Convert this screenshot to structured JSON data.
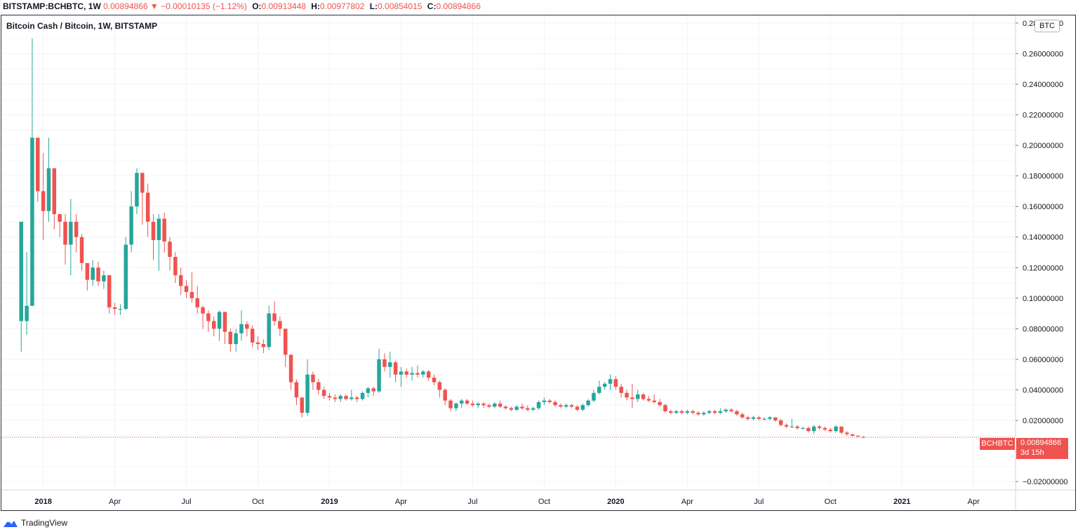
{
  "header": {
    "symbol": "BITSTAMP:BCHBTC, 1W",
    "last": "0.00894866",
    "change_arrow": "▼",
    "change": "−0.00010135 (−1.12%)",
    "open_label": "O:",
    "open": "0.00913448",
    "high_label": "H:",
    "high": "0.00977802",
    "low_label": "L:",
    "low": "0.00854015",
    "close_label": "C:",
    "close": "0.00894866"
  },
  "chart_title": "Bitcoin Cash / Bitcoin, 1W, BITSTAMP",
  "currency_badge": "BTC",
  "symbol_tag": "BCHBTC",
  "last_price_tag": "0.00894866",
  "countdown": "3d 15h",
  "footer": {
    "brand": "TradingView",
    "logo_icon": "tradingview-logo-icon"
  },
  "colors": {
    "up": "#26a69a",
    "down": "#ef5350",
    "grid": "#f0f3fa",
    "text": "#131722"
  },
  "chart_data": {
    "type": "candlestick",
    "title": "Bitcoin Cash / Bitcoin, 1W, BITSTAMP",
    "y_axis_position": "right",
    "ylim": [
      -0.025,
      0.285
    ],
    "yticks": [
      "0.28000000",
      "0.26000000",
      "0.24000000",
      "0.22000000",
      "0.20000000",
      "0.18000000",
      "0.16000000",
      "0.14000000",
      "0.12000000",
      "0.10000000",
      "0.08000000",
      "0.06000000",
      "0.04000000",
      "0.02000000",
      "−0.02000000"
    ],
    "xtick_labels": [
      {
        "label": "2018",
        "bold": true,
        "week": 4
      },
      {
        "label": "Apr",
        "bold": false,
        "week": 17
      },
      {
        "label": "Jul",
        "bold": false,
        "week": 30
      },
      {
        "label": "Oct",
        "bold": false,
        "week": 43
      },
      {
        "label": "2019",
        "bold": true,
        "week": 56
      },
      {
        "label": "Apr",
        "bold": false,
        "week": 69
      },
      {
        "label": "Jul",
        "bold": false,
        "week": 82
      },
      {
        "label": "Oct",
        "bold": false,
        "week": 95
      },
      {
        "label": "2020",
        "bold": true,
        "week": 108
      },
      {
        "label": "Apr",
        "bold": false,
        "week": 121
      },
      {
        "label": "Jul",
        "bold": false,
        "week": 134
      },
      {
        "label": "Oct",
        "bold": false,
        "week": 147
      },
      {
        "label": "2021",
        "bold": true,
        "week": 160
      },
      {
        "label": "Apr",
        "bold": false,
        "week": 173
      }
    ],
    "last_price": 0.00894866,
    "x_range_weeks": [
      -3.6,
      180.5
    ],
    "candles_ohlc": [
      [
        0.085,
        0.15,
        0.065,
        0.15
      ],
      [
        0.085,
        0.13,
        0.076,
        0.095
      ],
      [
        0.095,
        0.27,
        0.095,
        0.205
      ],
      [
        0.205,
        0.205,
        0.163,
        0.17
      ],
      [
        0.17,
        0.195,
        0.138,
        0.157
      ],
      [
        0.157,
        0.205,
        0.15,
        0.185
      ],
      [
        0.185,
        0.185,
        0.145,
        0.155
      ],
      [
        0.155,
        0.155,
        0.14,
        0.15
      ],
      [
        0.15,
        0.155,
        0.122,
        0.135
      ],
      [
        0.135,
        0.165,
        0.115,
        0.15
      ],
      [
        0.15,
        0.155,
        0.13,
        0.14
      ],
      [
        0.14,
        0.142,
        0.118,
        0.123
      ],
      [
        0.123,
        0.123,
        0.105,
        0.112
      ],
      [
        0.112,
        0.125,
        0.108,
        0.12
      ],
      [
        0.12,
        0.124,
        0.108,
        0.111
      ],
      [
        0.111,
        0.118,
        0.106,
        0.115
      ],
      [
        0.115,
        0.115,
        0.09,
        0.094
      ],
      [
        0.094,
        0.097,
        0.089,
        0.093
      ],
      [
        0.093,
        0.096,
        0.089,
        0.093
      ],
      [
        0.093,
        0.14,
        0.092,
        0.135
      ],
      [
        0.135,
        0.17,
        0.13,
        0.16
      ],
      [
        0.16,
        0.185,
        0.155,
        0.182
      ],
      [
        0.182,
        0.182,
        0.148,
        0.169
      ],
      [
        0.169,
        0.175,
        0.14,
        0.15
      ],
      [
        0.15,
        0.155,
        0.125,
        0.138
      ],
      [
        0.138,
        0.155,
        0.118,
        0.152
      ],
      [
        0.152,
        0.156,
        0.13,
        0.137
      ],
      [
        0.137,
        0.14,
        0.118,
        0.127
      ],
      [
        0.127,
        0.13,
        0.11,
        0.115
      ],
      [
        0.115,
        0.12,
        0.102,
        0.108
      ],
      [
        0.108,
        0.112,
        0.1,
        0.104
      ],
      [
        0.104,
        0.117,
        0.097,
        0.1
      ],
      [
        0.1,
        0.108,
        0.09,
        0.094
      ],
      [
        0.094,
        0.095,
        0.08,
        0.09
      ],
      [
        0.09,
        0.092,
        0.078,
        0.085
      ],
      [
        0.085,
        0.088,
        0.075,
        0.08
      ],
      [
        0.08,
        0.092,
        0.072,
        0.091
      ],
      [
        0.091,
        0.091,
        0.07,
        0.078
      ],
      [
        0.078,
        0.08,
        0.065,
        0.07
      ],
      [
        0.07,
        0.08,
        0.065,
        0.077
      ],
      [
        0.077,
        0.092,
        0.072,
        0.083
      ],
      [
        0.083,
        0.085,
        0.075,
        0.08
      ],
      [
        0.08,
        0.082,
        0.068,
        0.071
      ],
      [
        0.071,
        0.075,
        0.066,
        0.07
      ],
      [
        0.07,
        0.073,
        0.064,
        0.068
      ],
      [
        0.068,
        0.095,
        0.066,
        0.09
      ],
      [
        0.09,
        0.098,
        0.082,
        0.085
      ],
      [
        0.085,
        0.088,
        0.075,
        0.08
      ],
      [
        0.08,
        0.08,
        0.055,
        0.063
      ],
      [
        0.063,
        0.063,
        0.04,
        0.045
      ],
      [
        0.045,
        0.047,
        0.03,
        0.035
      ],
      [
        0.035,
        0.035,
        0.022,
        0.025
      ],
      [
        0.025,
        0.06,
        0.023,
        0.05
      ],
      [
        0.05,
        0.052,
        0.04,
        0.045
      ],
      [
        0.045,
        0.047,
        0.037,
        0.04
      ],
      [
        0.04,
        0.042,
        0.034,
        0.036
      ],
      [
        0.036,
        0.038,
        0.033,
        0.035
      ],
      [
        0.035,
        0.037,
        0.032,
        0.034
      ],
      [
        0.034,
        0.037,
        0.032,
        0.036
      ],
      [
        0.036,
        0.037,
        0.033,
        0.034
      ],
      [
        0.034,
        0.04,
        0.033,
        0.035
      ],
      [
        0.035,
        0.036,
        0.032,
        0.034
      ],
      [
        0.034,
        0.039,
        0.033,
        0.038
      ],
      [
        0.038,
        0.042,
        0.035,
        0.041
      ],
      [
        0.041,
        0.042,
        0.036,
        0.039
      ],
      [
        0.039,
        0.067,
        0.038,
        0.06
      ],
      [
        0.06,
        0.064,
        0.052,
        0.055
      ],
      [
        0.055,
        0.065,
        0.048,
        0.058
      ],
      [
        0.058,
        0.059,
        0.045,
        0.05
      ],
      [
        0.05,
        0.055,
        0.042,
        0.052
      ],
      [
        0.052,
        0.054,
        0.048,
        0.05
      ],
      [
        0.05,
        0.055,
        0.046,
        0.051
      ],
      [
        0.051,
        0.056,
        0.048,
        0.05
      ],
      [
        0.05,
        0.053,
        0.048,
        0.052
      ],
      [
        0.052,
        0.053,
        0.046,
        0.048
      ],
      [
        0.048,
        0.05,
        0.043,
        0.045
      ],
      [
        0.045,
        0.046,
        0.035,
        0.04
      ],
      [
        0.04,
        0.041,
        0.03,
        0.033
      ],
      [
        0.033,
        0.034,
        0.026,
        0.028
      ],
      [
        0.028,
        0.032,
        0.026,
        0.031
      ],
      [
        0.031,
        0.034,
        0.028,
        0.033
      ],
      [
        0.033,
        0.034,
        0.03,
        0.031
      ],
      [
        0.031,
        0.033,
        0.029,
        0.03
      ],
      [
        0.03,
        0.032,
        0.028,
        0.031
      ],
      [
        0.031,
        0.032,
        0.028,
        0.03
      ],
      [
        0.03,
        0.031,
        0.028,
        0.029
      ],
      [
        0.029,
        0.032,
        0.028,
        0.031
      ],
      [
        0.031,
        0.033,
        0.028,
        0.029
      ],
      [
        0.029,
        0.03,
        0.027,
        0.028
      ],
      [
        0.028,
        0.029,
        0.026,
        0.027
      ],
      [
        0.027,
        0.03,
        0.026,
        0.029
      ],
      [
        0.029,
        0.031,
        0.027,
        0.028
      ],
      [
        0.028,
        0.03,
        0.026,
        0.027
      ],
      [
        0.027,
        0.029,
        0.026,
        0.028
      ],
      [
        0.028,
        0.033,
        0.027,
        0.032
      ],
      [
        0.032,
        0.035,
        0.03,
        0.033
      ],
      [
        0.033,
        0.034,
        0.031,
        0.032
      ],
      [
        0.032,
        0.033,
        0.029,
        0.03
      ],
      [
        0.03,
        0.031,
        0.028,
        0.029
      ],
      [
        0.029,
        0.031,
        0.028,
        0.03
      ],
      [
        0.03,
        0.031,
        0.028,
        0.029
      ],
      [
        0.029,
        0.03,
        0.026,
        0.027
      ],
      [
        0.027,
        0.031,
        0.026,
        0.03
      ],
      [
        0.03,
        0.034,
        0.029,
        0.033
      ],
      [
        0.033,
        0.04,
        0.032,
        0.038
      ],
      [
        0.038,
        0.046,
        0.037,
        0.042
      ],
      [
        0.042,
        0.045,
        0.04,
        0.044
      ],
      [
        0.044,
        0.05,
        0.04,
        0.047
      ],
      [
        0.047,
        0.049,
        0.04,
        0.042
      ],
      [
        0.042,
        0.044,
        0.035,
        0.038
      ],
      [
        0.038,
        0.04,
        0.033,
        0.035
      ],
      [
        0.035,
        0.044,
        0.028,
        0.034
      ],
      [
        0.034,
        0.04,
        0.032,
        0.037
      ],
      [
        0.037,
        0.038,
        0.033,
        0.034
      ],
      [
        0.034,
        0.036,
        0.032,
        0.033
      ],
      [
        0.033,
        0.037,
        0.031,
        0.032
      ],
      [
        0.032,
        0.034,
        0.029,
        0.03
      ],
      [
        0.03,
        0.031,
        0.025,
        0.026
      ],
      [
        0.026,
        0.027,
        0.024,
        0.025
      ],
      [
        0.025,
        0.027,
        0.024,
        0.026
      ],
      [
        0.026,
        0.027,
        0.024,
        0.025
      ],
      [
        0.025,
        0.027,
        0.024,
        0.026
      ],
      [
        0.026,
        0.027,
        0.024,
        0.025
      ],
      [
        0.025,
        0.026,
        0.023,
        0.024
      ],
      [
        0.024,
        0.026,
        0.023,
        0.025
      ],
      [
        0.025,
        0.027,
        0.024,
        0.026
      ],
      [
        0.026,
        0.027,
        0.024,
        0.025
      ],
      [
        0.025,
        0.028,
        0.024,
        0.026
      ],
      [
        0.026,
        0.028,
        0.025,
        0.027
      ],
      [
        0.027,
        0.028,
        0.025,
        0.026
      ],
      [
        0.026,
        0.027,
        0.023,
        0.024
      ],
      [
        0.024,
        0.025,
        0.021,
        0.022
      ],
      [
        0.022,
        0.023,
        0.02,
        0.021
      ],
      [
        0.021,
        0.023,
        0.02,
        0.022
      ],
      [
        0.022,
        0.023,
        0.02,
        0.021
      ],
      [
        0.021,
        0.022,
        0.02,
        0.021
      ],
      [
        0.021,
        0.023,
        0.02,
        0.022
      ],
      [
        0.022,
        0.022,
        0.019,
        0.02
      ],
      [
        0.02,
        0.021,
        0.016,
        0.017
      ],
      [
        0.017,
        0.018,
        0.015,
        0.016
      ],
      [
        0.016,
        0.021,
        0.015,
        0.016
      ],
      [
        0.016,
        0.017,
        0.014,
        0.015
      ],
      [
        0.015,
        0.016,
        0.014,
        0.015
      ],
      [
        0.015,
        0.016,
        0.012,
        0.013
      ],
      [
        0.013,
        0.017,
        0.011,
        0.016
      ],
      [
        0.016,
        0.017,
        0.014,
        0.015
      ],
      [
        0.015,
        0.016,
        0.013,
        0.014
      ],
      [
        0.014,
        0.015,
        0.012,
        0.013
      ],
      [
        0.013,
        0.017,
        0.012,
        0.016
      ],
      [
        0.016,
        0.016,
        0.011,
        0.012
      ],
      [
        0.012,
        0.013,
        0.01,
        0.011
      ],
      [
        0.011,
        0.011,
        0.0095,
        0.01
      ],
      [
        0.01,
        0.0102,
        0.009,
        0.0095
      ],
      [
        0.00913448,
        0.00977802,
        0.00854015,
        0.00894866
      ]
    ]
  }
}
